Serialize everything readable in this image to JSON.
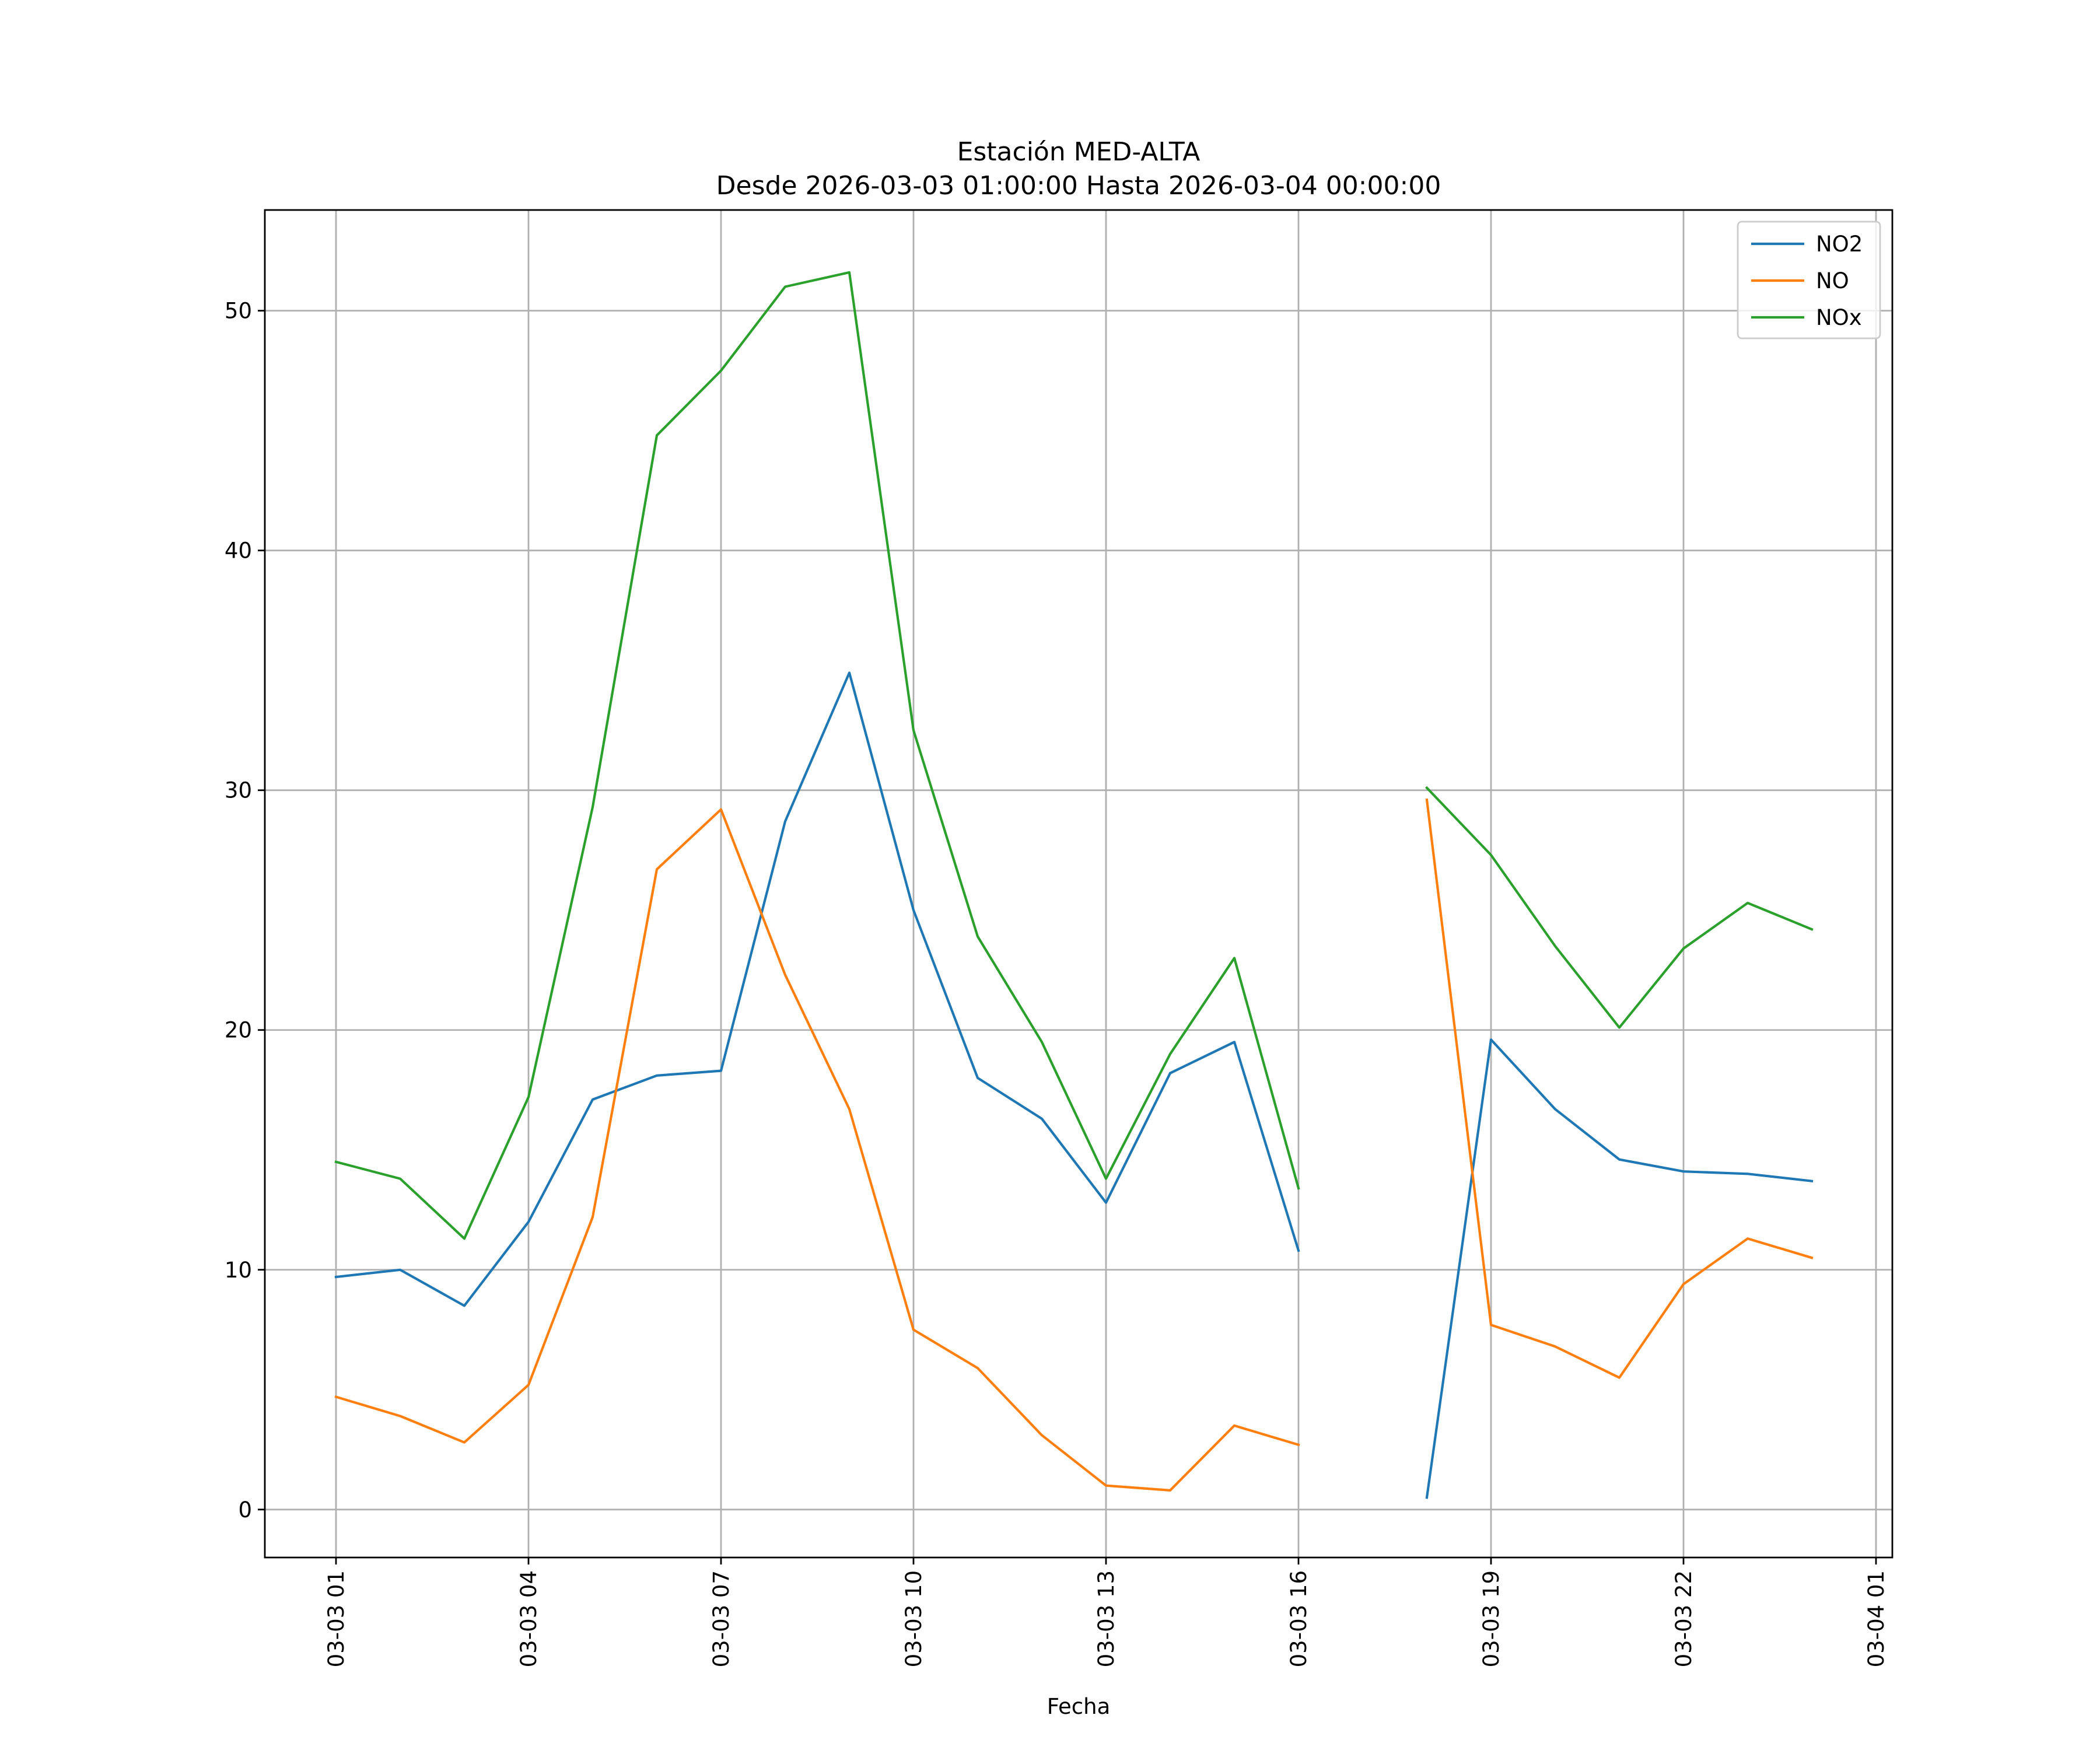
{
  "chart_data": {
    "type": "line",
    "title": "Estación MED-ALTA",
    "subtitle": "Desde 2026-03-03 01:00:00 Hasta 2026-03-04 00:00:00",
    "xlabel": "Fecha",
    "ylabel": "",
    "x": [
      "2026-03-03 01:00",
      "2026-03-03 02:00",
      "2026-03-03 03:00",
      "2026-03-03 04:00",
      "2026-03-03 05:00",
      "2026-03-03 06:00",
      "2026-03-03 07:00",
      "2026-03-03 08:00",
      "2026-03-03 09:00",
      "2026-03-03 10:00",
      "2026-03-03 11:00",
      "2026-03-03 12:00",
      "2026-03-03 13:00",
      "2026-03-03 14:00",
      "2026-03-03 15:00",
      "2026-03-03 16:00",
      "2026-03-03 17:00",
      "2026-03-03 18:00",
      "2026-03-03 19:00",
      "2026-03-03 20:00",
      "2026-03-03 21:00",
      "2026-03-03 22:00",
      "2026-03-03 23:00",
      "2026-03-04 00:00"
    ],
    "series": [
      {
        "name": "NO2",
        "color": "#1f77b4",
        "values": [
          9.7,
          10.0,
          8.5,
          12.0,
          17.1,
          18.1,
          18.3,
          28.7,
          34.9,
          25.0,
          18.0,
          16.3,
          12.8,
          18.2,
          19.5,
          10.8,
          null,
          0.5,
          19.6,
          16.7,
          14.6,
          14.1,
          14.0,
          13.7
        ]
      },
      {
        "name": "NO",
        "color": "#ff7f0e",
        "values": [
          4.7,
          3.9,
          2.8,
          5.2,
          12.2,
          26.7,
          29.2,
          22.3,
          16.7,
          7.5,
          5.9,
          3.1,
          1.0,
          0.8,
          3.5,
          2.7,
          null,
          29.6,
          7.7,
          6.8,
          5.5,
          9.4,
          11.3,
          10.5
        ]
      },
      {
        "name": "NOx",
        "color": "#2ca02c",
        "values": [
          14.5,
          13.8,
          11.3,
          17.2,
          29.3,
          44.8,
          47.5,
          51.0,
          51.6,
          32.5,
          23.9,
          19.5,
          13.8,
          19.0,
          23.0,
          13.4,
          null,
          30.1,
          27.3,
          23.5,
          20.1,
          23.4,
          25.3,
          24.2
        ]
      }
    ],
    "ylim": [
      -2,
      54.2
    ],
    "yticks": [
      "0",
      "10",
      "20",
      "30",
      "40",
      "50"
    ],
    "xticks": [
      "03-03 01",
      "03-03 04",
      "03-03 07",
      "03-03 10",
      "03-03 13",
      "03-03 16",
      "03-03 19",
      "03-03 22",
      "03-04 01"
    ],
    "grid": true,
    "legend_position": "top-right"
  }
}
